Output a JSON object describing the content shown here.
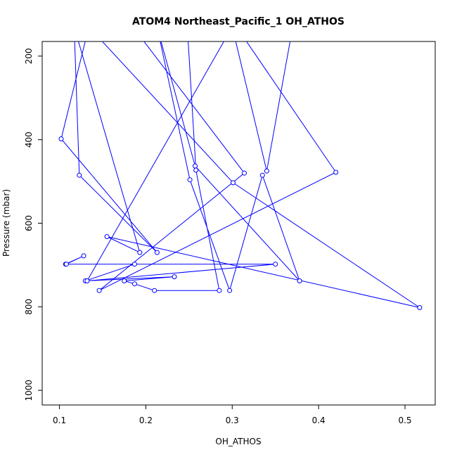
{
  "chart_data": {
    "type": "line",
    "title": "ATOM4 Northeast_Pacific_1 OH_ATHOS",
    "xlabel": "OH_ATHOS",
    "ylabel": "Pressure (mbar)",
    "xlim": [
      0.08,
      0.535
    ],
    "ylim": [
      1035,
      165
    ],
    "y_inverted": true,
    "xticks": [
      0.1,
      0.2,
      0.3,
      0.4,
      0.5
    ],
    "xtick_labels": [
      "0.1",
      "0.2",
      "0.3",
      "0.4",
      "0.5"
    ],
    "yticks": [
      200,
      400,
      600,
      800,
      1000
    ],
    "ytick_labels": [
      "200",
      "400",
      "600",
      "800",
      "1000"
    ],
    "grid": false,
    "series": [
      {
        "color": "#0000ff",
        "points": [
          {
            "x": 0.117,
            "y": 130,
            "marker": false
          },
          {
            "x": 0.193,
            "y": 670,
            "marker": true
          },
          {
            "x": 0.155,
            "y": 632,
            "marker": true
          },
          {
            "x": 0.517,
            "y": 802,
            "marker": true
          },
          {
            "x": 0.301,
            "y": 503,
            "marker": true
          },
          {
            "x": 0.134,
            "y": 130,
            "marker": false
          },
          {
            "x": 0.102,
            "y": 398,
            "marker": true
          },
          {
            "x": 0.213,
            "y": 670,
            "marker": true
          },
          {
            "x": 0.123,
            "y": 485,
            "marker": true
          },
          {
            "x": 0.117,
            "y": 130,
            "marker": false
          },
          {
            "x": 0.213,
            "y": 130,
            "marker": false
          },
          {
            "x": 0.257,
            "y": 463,
            "marker": true
          },
          {
            "x": 0.378,
            "y": 738,
            "marker": true
          },
          {
            "x": 0.335,
            "y": 485,
            "marker": true
          },
          {
            "x": 0.297,
            "y": 761,
            "marker": true
          },
          {
            "x": 0.251,
            "y": 496,
            "marker": true
          },
          {
            "x": 0.213,
            "y": 130,
            "marker": false
          },
          {
            "x": 0.185,
            "y": 130,
            "marker": false
          },
          {
            "x": 0.314,
            "y": 480,
            "marker": true
          },
          {
            "x": 0.146,
            "y": 761,
            "marker": true
          },
          {
            "x": 0.42,
            "y": 478,
            "marker": true
          },
          {
            "x": 0.305,
            "y": 130,
            "marker": false
          },
          {
            "x": 0.248,
            "y": 130,
            "marker": false
          },
          {
            "x": 0.258,
            "y": 473,
            "marker": true
          },
          {
            "x": 0.285,
            "y": 761,
            "marker": true
          },
          {
            "x": 0.21,
            "y": 761,
            "marker": true
          },
          {
            "x": 0.187,
            "y": 745,
            "marker": true
          },
          {
            "x": 0.175,
            "y": 738,
            "marker": true
          },
          {
            "x": 0.233,
            "y": 728,
            "marker": true
          },
          {
            "x": 0.13,
            "y": 738,
            "marker": true
          },
          {
            "x": 0.187,
            "y": 698,
            "marker": true
          },
          {
            "x": 0.107,
            "y": 698,
            "marker": true
          },
          {
            "x": 0.128,
            "y": 678,
            "marker": true
          },
          {
            "x": 0.108,
            "y": 698,
            "marker": true
          },
          {
            "x": 0.35,
            "y": 698,
            "marker": true
          },
          {
            "x": 0.132,
            "y": 738,
            "marker": true
          },
          {
            "x": 0.3,
            "y": 130,
            "marker": false
          },
          {
            "x": 0.34,
            "y": 475,
            "marker": true
          },
          {
            "x": 0.37,
            "y": 130,
            "marker": false
          }
        ]
      }
    ]
  }
}
